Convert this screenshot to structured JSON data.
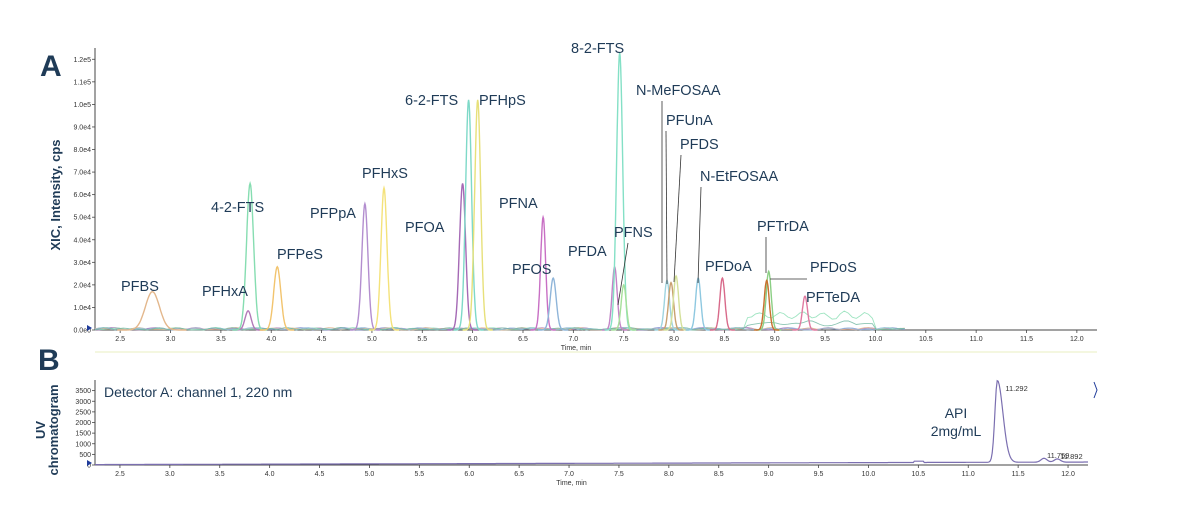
{
  "chart_data": [
    {
      "type": "line",
      "panel": "A",
      "ylabel": "XIC, Intensity, cps",
      "xlabel": "Time, min",
      "xlim": [
        2.25,
        12.2
      ],
      "ylim": [
        0,
        125000
      ],
      "x_ticks": [
        "2.5",
        "3.0",
        "3.5",
        "4.0",
        "4.5",
        "5.0",
        "5.5",
        "6.0",
        "6.5",
        "7.0",
        "7.5",
        "8.0",
        "8.5",
        "9.0",
        "9.5",
        "10.0",
        "10.5",
        "11.0",
        "11.5",
        "12.0"
      ],
      "y_ticks": [
        {
          "value": 0,
          "label": "0.0e0"
        },
        {
          "value": 10000,
          "label": "1.0e4"
        },
        {
          "value": 20000,
          "label": "2.0e4"
        },
        {
          "value": 30000,
          "label": "3.0e4"
        },
        {
          "value": 40000,
          "label": "4.0e4"
        },
        {
          "value": 50000,
          "label": "5.0e4"
        },
        {
          "value": 60000,
          "label": "6.0e4"
        },
        {
          "value": 70000,
          "label": "7.0e4"
        },
        {
          "value": 80000,
          "label": "8.0e4"
        },
        {
          "value": 90000,
          "label": "9.0e4"
        },
        {
          "value": 100000,
          "label": "1.0e5"
        },
        {
          "value": 110000,
          "label": "1.1e5"
        },
        {
          "value": 120000,
          "label": "1.2e5"
        }
      ],
      "series": [
        {
          "label": "PFBS",
          "rt": 2.82,
          "height": 17000,
          "width": 0.07,
          "color": "#e3b78c"
        },
        {
          "label": "PFHxA",
          "rt": 3.77,
          "height": 8500,
          "width": 0.03,
          "color": "#b27ab8"
        },
        {
          "label": "4-2-FTS",
          "rt": 3.79,
          "height": 65000,
          "width": 0.035,
          "color": "#86ddb1"
        },
        {
          "label": "PFPeS",
          "rt": 4.06,
          "height": 28000,
          "width": 0.035,
          "color": "#f2c46e"
        },
        {
          "label": "PFPpA",
          "rt": 4.93,
          "height": 56000,
          "width": 0.03,
          "color": "#b38ecf"
        },
        {
          "label": "PFHxS",
          "rt": 5.12,
          "height": 63000,
          "width": 0.03,
          "color": "#f4e27a"
        },
        {
          "label": "PFOA",
          "rt": 5.9,
          "height": 65000,
          "width": 0.03,
          "color": "#a569b5"
        },
        {
          "label": "6-2-FTS",
          "rt": 5.96,
          "height": 102000,
          "width": 0.03,
          "color": "#7ed9c8"
        },
        {
          "label": "PFHpS",
          "rt": 6.05,
          "height": 102000,
          "width": 0.03,
          "color": "#e7e07a"
        },
        {
          "label": "PFNA",
          "rt": 6.7,
          "height": 50000,
          "width": 0.025,
          "color": "#c86fc4"
        },
        {
          "label": "PFOS",
          "rt": 6.8,
          "height": 23000,
          "width": 0.03,
          "color": "#8fb5d9"
        },
        {
          "label": "PFDA",
          "rt": 7.41,
          "height": 28000,
          "width": 0.025,
          "color": "#c283c6"
        },
        {
          "label": "8-2-FTS",
          "rt": 7.46,
          "height": 123000,
          "width": 0.03,
          "color": "#84e0c6"
        },
        {
          "label": "PFNS",
          "rt": 7.5,
          "height": 20000,
          "width": 0.025,
          "color": "#a5e09a"
        },
        {
          "label": "N-MeFOSAA",
          "rt": 7.93,
          "height": 22000,
          "width": 0.025,
          "color": "#9fd4e0"
        },
        {
          "label": "PFUnA",
          "rt": 7.97,
          "height": 21000,
          "width": 0.025,
          "color": "#c8a070"
        },
        {
          "label": "PFDS",
          "rt": 8.02,
          "height": 24000,
          "width": 0.025,
          "color": "#d4e09a"
        },
        {
          "label": "N-EtFOSAA",
          "rt": 8.24,
          "height": 23000,
          "width": 0.025,
          "color": "#8ec8e0"
        },
        {
          "label": "PFDoA",
          "rt": 8.48,
          "height": 23000,
          "width": 0.025,
          "color": "#d86a8a"
        },
        {
          "label": "PFTrDA",
          "rt": 8.94,
          "height": 26000,
          "width": 0.025,
          "color": "#8bcf84"
        },
        {
          "label": "PFDoS",
          "rt": 8.92,
          "height": 22000,
          "width": 0.025,
          "color": "#c8702e"
        },
        {
          "label": "PFTeDA",
          "rt": 9.3,
          "height": 15000,
          "width": 0.025,
          "color": "#e07aa0"
        }
      ]
    },
    {
      "type": "line",
      "panel": "B",
      "ylabel": "UV chromatogram",
      "xlabel": "Time, min",
      "xlim": [
        2.25,
        12.2
      ],
      "ylim": [
        0,
        4000
      ],
      "x_ticks": [
        "2.5",
        "3.0",
        "3.5",
        "4.0",
        "4.5",
        "5.0",
        "5.5",
        "6.0",
        "6.5",
        "7.0",
        "7.5",
        "8.0",
        "8.5",
        "9.0",
        "9.5",
        "10.0",
        "10.5",
        "11.0",
        "11.5",
        "12.0"
      ],
      "y_ticks": [
        {
          "value": 0,
          "label": "0"
        },
        {
          "value": 500,
          "label": "500"
        },
        {
          "value": 1000,
          "label": "1000"
        },
        {
          "value": 1500,
          "label": "1500"
        },
        {
          "value": 2000,
          "label": "2000"
        },
        {
          "value": 2500,
          "label": "2500"
        },
        {
          "value": 3000,
          "label": "3000"
        },
        {
          "value": 3500,
          "label": "3500"
        }
      ],
      "detector": "Detector A: channel 1, 220 nm",
      "annotation_line1": "API",
      "annotation_line2": "2mg/mL",
      "peaks": [
        {
          "rt": 11.292,
          "label": "11.292",
          "height": 3850
        },
        {
          "rt": 11.759,
          "label": "11.759",
          "height": 180
        },
        {
          "rt": 11.892,
          "label": "11.892",
          "height": 150
        }
      ]
    }
  ],
  "panels": {
    "a_letter": "A",
    "b_letter": "B"
  }
}
